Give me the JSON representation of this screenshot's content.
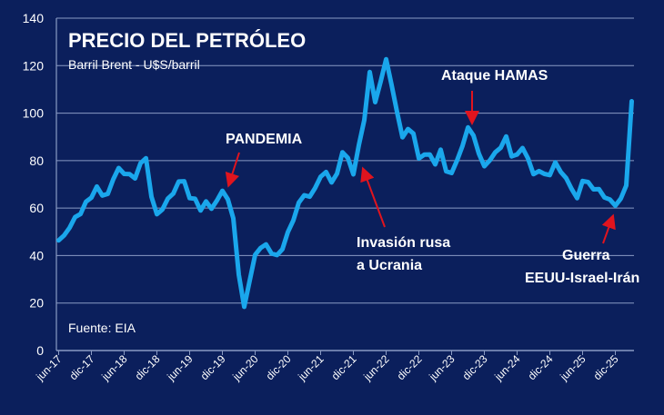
{
  "chart_data": {
    "type": "line",
    "title": "PRECIO DEL PETRÓLEO",
    "subtitle": "Barril Brent - U$S/barril",
    "source": "Fuente: EIA",
    "ylim": [
      0,
      140
    ],
    "yticks": [
      0,
      20,
      40,
      60,
      80,
      100,
      120,
      140
    ],
    "grid": true,
    "xtick_labels": [
      "jun-17",
      "dic-17",
      "jun-18",
      "dic-18",
      "jun-19",
      "dic-19",
      "jun-20",
      "dic-20",
      "jun-21",
      "dic-21",
      "jun-22",
      "dic-22",
      "jun-23",
      "dic-23",
      "jun-24",
      "dic-24",
      "jun-25",
      "dic-25"
    ],
    "x_start": "jun-17",
    "x_end": "mar-26",
    "frequency": "monthly",
    "colors": {
      "background": "#0b1f5c",
      "line": "#1aa7ec",
      "grid": "#8a9bc4",
      "arrow": "#e0141e"
    },
    "values": [
      46.4,
      48.5,
      51.7,
      56.2,
      57.5,
      62.7,
      64.4,
      69.1,
      65.3,
      66.0,
      72.1,
      76.9,
      74.4,
      74.3,
      72.5,
      78.9,
      81.0,
      64.8,
      57.4,
      59.4,
      64.0,
      66.1,
      71.2,
      71.3,
      64.2,
      63.9,
      59.0,
      62.8,
      59.7,
      63.2,
      67.3,
      63.7,
      55.7,
      32.0,
      18.4,
      29.4,
      40.3,
      43.2,
      44.7,
      40.9,
      40.2,
      42.7,
      49.9,
      54.8,
      62.3,
      65.4,
      64.8,
      68.5,
      73.2,
      75.2,
      70.8,
      74.5,
      83.5,
      81.1,
      74.2,
      86.5,
      97.1,
      117.3,
      104.6,
      113.3,
      122.7,
      111.9,
      100.5,
      89.8,
      93.3,
      91.4,
      80.9,
      82.5,
      82.6,
      78.4,
      84.6,
      75.5,
      74.8,
      80.1,
      86.2,
      94.0,
      90.6,
      82.9,
      77.6,
      80.1,
      83.5,
      85.4,
      90.2,
      81.8,
      82.6,
      85.3,
      80.9,
      74.3,
      75.6,
      74.4,
      73.9,
      79.3,
      75.2,
      72.6,
      68.0,
      64.2,
      71.4,
      71.0,
      67.9,
      68.0,
      64.5,
      63.6,
      61.0,
      64.0,
      69.5,
      105.0
    ],
    "annotations": [
      {
        "lines": [
          "PANDEMIA"
        ]
      },
      {
        "lines": [
          "Invasión rusa",
          "a Ucrania"
        ]
      },
      {
        "lines": [
          "Ataque HAMAS"
        ]
      },
      {
        "lines": [
          "Guerra",
          "EEUU-Israel-Irán"
        ]
      }
    ]
  }
}
